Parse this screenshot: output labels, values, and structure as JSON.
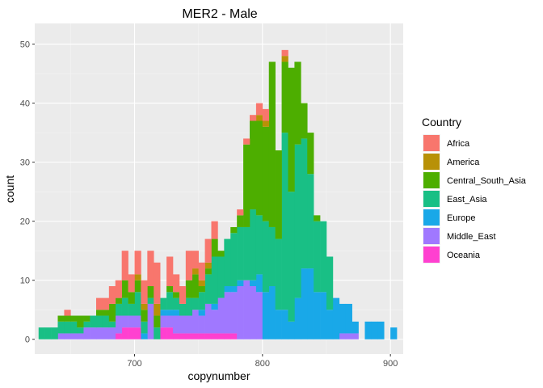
{
  "chart_data": {
    "type": "bar",
    "stacked": true,
    "histogram": true,
    "title": "MER2 - Male",
    "xlabel": "copynumber",
    "ylabel": "count",
    "xlim": [
      622,
      910
    ],
    "ylim": [
      -2.5,
      53.5
    ],
    "x_ticks": [
      700,
      800,
      900
    ],
    "y_ticks": [
      0,
      10,
      20,
      30,
      40,
      50
    ],
    "bin_width": 5,
    "bin_starts": [
      625,
      630,
      635,
      640,
      645,
      650,
      655,
      660,
      665,
      670,
      675,
      680,
      685,
      690,
      695,
      700,
      705,
      710,
      715,
      720,
      725,
      730,
      735,
      740,
      745,
      750,
      755,
      760,
      765,
      770,
      775,
      780,
      785,
      790,
      795,
      800,
      805,
      810,
      815,
      820,
      825,
      830,
      835,
      840,
      845,
      850,
      855,
      860,
      865,
      870,
      875,
      880,
      885,
      890,
      895,
      900
    ],
    "legend_title": "Country",
    "legend_position": "right",
    "grid": true,
    "series": [
      {
        "name": "Oceania",
        "color": "#FF40D0",
        "values": [
          0,
          0,
          0,
          0,
          0,
          0,
          0,
          0,
          0,
          0,
          0,
          0,
          1,
          2,
          2,
          2,
          0,
          0,
          0,
          2,
          2,
          1,
          1,
          1,
          1,
          1,
          1,
          1,
          1,
          1,
          1,
          0,
          0,
          0,
          0,
          0,
          0,
          0,
          0,
          0,
          0,
          0,
          0,
          0,
          0,
          0,
          0,
          0,
          0,
          0,
          0,
          0,
          0,
          0,
          0,
          0
        ]
      },
      {
        "name": "Middle_East",
        "color": "#A078FF",
        "values": [
          0,
          0,
          0,
          1,
          1,
          1,
          1,
          2,
          2,
          2,
          2,
          2,
          3,
          2,
          2,
          2,
          0,
          6,
          0,
          2,
          2,
          3,
          3,
          3,
          4,
          3,
          5,
          4,
          6,
          7,
          7,
          9,
          10,
          9,
          8,
          0,
          0,
          0,
          0,
          0,
          0,
          0,
          0,
          0,
          0,
          0,
          0,
          1,
          1,
          1,
          0,
          0,
          0,
          0,
          0,
          0
        ]
      },
      {
        "name": "Europe",
        "color": "#19A8E8",
        "values": [
          0,
          0,
          0,
          0,
          0,
          0,
          0,
          0,
          0,
          0,
          0,
          0,
          0,
          0,
          0,
          0,
          1,
          0,
          0,
          1,
          1,
          1,
          0,
          0,
          0,
          1,
          0,
          1,
          0,
          1,
          1,
          1,
          0,
          1,
          3,
          8,
          9,
          5,
          5,
          3,
          7,
          12,
          12,
          8,
          8,
          5,
          7,
          5,
          5,
          2,
          0,
          3,
          3,
          3,
          0,
          2
        ]
      },
      {
        "name": "East_Asia",
        "color": "#19BF85",
        "values": [
          2,
          2,
          2,
          2,
          2,
          2,
          1,
          1,
          2,
          2,
          2,
          1,
          2,
          3,
          2,
          4,
          2,
          1,
          2,
          2,
          3,
          2,
          2,
          3,
          2,
          3,
          5,
          8,
          7,
          8,
          9,
          9,
          9,
          12,
          10,
          12,
          10,
          12,
          30,
          22,
          26,
          22,
          16,
          12,
          12,
          9,
          0,
          0,
          0,
          0,
          0,
          0,
          0,
          0,
          0,
          0
        ]
      },
      {
        "name": "Central_South_Asia",
        "color": "#4DAE00",
        "values": [
          0,
          0,
          0,
          1,
          1,
          1,
          2,
          1,
          0,
          1,
          1,
          3,
          1,
          3,
          2,
          2,
          2,
          2,
          2,
          0,
          1,
          1,
          0,
          3,
          4,
          1,
          1,
          3,
          1,
          0,
          1,
          2,
          14,
          15,
          16,
          16,
          28,
          15,
          12,
          21,
          14,
          6,
          7,
          1,
          0,
          0,
          0,
          0,
          0,
          0,
          0,
          0,
          0,
          0,
          0,
          0
        ]
      },
      {
        "name": "America",
        "color": "#B89107",
        "values": [
          0,
          0,
          0,
          0,
          0,
          0,
          0,
          0,
          0,
          0,
          0,
          0,
          0,
          0,
          0,
          1,
          1,
          0,
          2,
          0,
          0,
          0,
          0,
          0,
          1,
          1,
          1,
          0,
          0,
          0,
          0,
          0,
          0,
          0,
          1,
          1,
          0,
          0,
          1,
          0,
          0,
          0,
          0,
          0,
          0,
          0,
          0,
          0,
          0,
          0,
          0,
          0,
          0,
          0,
          0,
          0
        ]
      },
      {
        "name": "Africa",
        "color": "#F8766D",
        "values": [
          0,
          0,
          0,
          0,
          1,
          0,
          0,
          0,
          0,
          2,
          2,
          3,
          3,
          5,
          3,
          4,
          4,
          6,
          7,
          0,
          5,
          3,
          3,
          5,
          3,
          3,
          4,
          3,
          0,
          0,
          0,
          1,
          1,
          1,
          2,
          2,
          0,
          0,
          1,
          0,
          0,
          0,
          0,
          0,
          0,
          0,
          0,
          0,
          0,
          0,
          0,
          0,
          0,
          0,
          0,
          0
        ]
      }
    ]
  }
}
